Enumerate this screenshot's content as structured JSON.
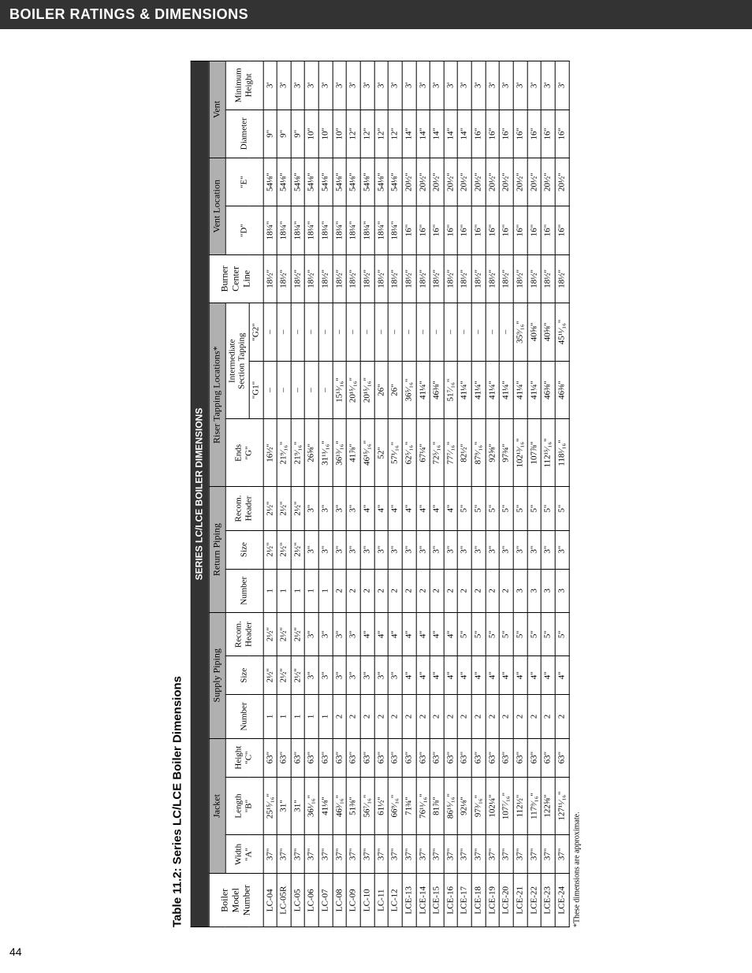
{
  "page_number": "44",
  "header": "BOILER RATINGS & DIMENSIONS",
  "table_title": "Table 11.2:  Series LC/LCE Boiler Dimensions",
  "main_title": "SERIES LC/LCE BOILER DIMENSIONS",
  "footnote": "*These dimensions are approximate.",
  "groups": {
    "jacket": "Jacket",
    "supply": "Supply Piping",
    "return": "Return Piping",
    "riser": "Riser Tapping Locations*",
    "vent_loc": "Vent Location",
    "vent": "Vent"
  },
  "subheads": {
    "boiler": "Boiler\nModel\nNumber",
    "width": "Width\n\"A\"",
    "length": "Length\n\"B\"",
    "height": "Height\n\"C\"",
    "number": "Number",
    "size": "Size",
    "recom": "Recom.\nHeader",
    "ends": "Ends\n\"G\"",
    "inter": "Intermediate\nSection Tapping",
    "g1": "\"G1\"",
    "g2": "\"G2\"",
    "burner": "Burner\nCenter\nLine",
    "d": "\"D\"",
    "e": "\"E\"",
    "diameter": "Diameter",
    "min": "Minimum\nHeight"
  },
  "rows": [
    {
      "m": "LC-04",
      "w": "37\"",
      "l": "25¹⁵⁄₁₆\"",
      "h": "63\"",
      "sn": "1",
      "ss": "2½\"",
      "sh": "2½\"",
      "rn": "1",
      "rs": "2½\"",
      "rh": "2½\"",
      "ends": "16½\"",
      "g1": "–",
      "g2": "–",
      "burn": "18½\"",
      "d": "18¼\"",
      "e": "54⅛\"",
      "diam": "9\"",
      "min": "3'"
    },
    {
      "m": "LC-05R",
      "w": "37\"",
      "l": "31\"",
      "h": "63\"",
      "sn": "1",
      "ss": "2½\"",
      "sh": "2½\"",
      "rn": "1",
      "rs": "2½\"",
      "rh": "2½\"",
      "ends": "21⁹⁄₁₆\"",
      "g1": "–",
      "g2": "–",
      "burn": "18½\"",
      "d": "18¼\"",
      "e": "54⅛\"",
      "diam": "9\"",
      "min": "3'"
    },
    {
      "m": "LC-05",
      "w": "37\"",
      "l": "31\"",
      "h": "63\"",
      "sn": "1",
      "ss": "2½\"",
      "sh": "2½\"",
      "rn": "1",
      "rs": "2½\"",
      "rh": "2½\"",
      "ends": "21⁹⁄₁₆\"",
      "g1": "–",
      "g2": "–",
      "burn": "18½\"",
      "d": "18¼\"",
      "e": "54⅛\"",
      "diam": "9\"",
      "min": "3'"
    },
    {
      "m": "LC-06",
      "w": "37\"",
      "l": "36¹⁄₁₆\"",
      "h": "63\"",
      "sn": "1",
      "ss": "3\"",
      "sh": "3\"",
      "rn": "1",
      "rs": "3\"",
      "rh": "3\"",
      "ends": "26⅝\"",
      "g1": "–",
      "g2": "–",
      "burn": "18½\"",
      "d": "18¼\"",
      "e": "54⅛\"",
      "diam": "10\"",
      "min": "3'"
    },
    {
      "m": "LC-07",
      "w": "37\"",
      "l": "41⅛\"",
      "h": "63\"",
      "sn": "1",
      "ss": "3\"",
      "sh": "3\"",
      "rn": "1",
      "rs": "3\"",
      "rh": "3\"",
      "ends": "31¹¹⁄₁₆\"",
      "g1": "–",
      "g2": "–",
      "burn": "18½\"",
      "d": "18¼\"",
      "e": "54⅛\"",
      "diam": "10\"",
      "min": "3'"
    },
    {
      "m": "LC-08",
      "w": "37\"",
      "l": "46³⁄₁₆\"",
      "h": "63\"",
      "sn": "2",
      "ss": "3\"",
      "sh": "3\"",
      "rn": "2",
      "rs": "3\"",
      "rh": "3\"",
      "ends": "36¹³⁄₁₆\"",
      "g1": "15¹³⁄₁₆\"",
      "g2": "–",
      "burn": "18½\"",
      "d": "18¼\"",
      "e": "54⅛\"",
      "diam": "10\"",
      "min": "3'"
    },
    {
      "m": "LC-09",
      "w": "37\"",
      "l": "51⅜\"",
      "h": "63\"",
      "sn": "2",
      "ss": "3\"",
      "sh": "3\"",
      "rn": "2",
      "rs": "3\"",
      "rh": "3\"",
      "ends": "41⅞\"",
      "g1": "20¹⁵⁄₁₆\"",
      "g2": "–",
      "burn": "18½\"",
      "d": "18¼\"",
      "e": "54⅛\"",
      "diam": "12\"",
      "min": "3'"
    },
    {
      "m": "LC-10",
      "w": "37\"",
      "l": "56⁷⁄₁₆\"",
      "h": "63\"",
      "sn": "2",
      "ss": "3\"",
      "sh": "4\"",
      "rn": "2",
      "rs": "3\"",
      "rh": "4\"",
      "ends": "46¹⁵⁄₁₆\"",
      "g1": "20¹⁵⁄₁₆\"",
      "g2": "–",
      "burn": "18½\"",
      "d": "18¼\"",
      "e": "54⅛\"",
      "diam": "12\"",
      "min": "3'"
    },
    {
      "m": "LC-11",
      "w": "37\"",
      "l": "61½\"",
      "h": "63\"",
      "sn": "2",
      "ss": "3\"",
      "sh": "4\"",
      "rn": "2",
      "rs": "3\"",
      "rh": "4\"",
      "ends": "52\"",
      "g1": "26\"",
      "g2": "–",
      "burn": "18½\"",
      "d": "18¼\"",
      "e": "54⅛\"",
      "diam": "12\"",
      "min": "3'"
    },
    {
      "m": "LC-12",
      "w": "37\"",
      "l": "66⁹⁄₁₆\"",
      "h": "63\"",
      "sn": "2",
      "ss": "3\"",
      "sh": "4\"",
      "rn": "2",
      "rs": "3\"",
      "rh": "4\"",
      "ends": "57¹⁄₁₆\"",
      "g1": "26\"",
      "g2": "–",
      "burn": "18½\"",
      "d": "18¼\"",
      "e": "54⅛\"",
      "diam": "12\"",
      "min": "3'"
    },
    {
      "m": "LCE-13",
      "w": "37\"",
      "l": "71¾\"",
      "h": "63\"",
      "sn": "2",
      "ss": "4\"",
      "sh": "4\"",
      "rn": "2",
      "rs": "3\"",
      "rh": "4\"",
      "ends": "62⁵⁄₁₆\"",
      "g1": "36⁵⁄₁₆\"",
      "g2": "–",
      "burn": "18½\"",
      "d": "16\"",
      "e": "20½\"",
      "diam": "14\"",
      "min": "3'"
    },
    {
      "m": "LCE-14",
      "w": "37\"",
      "l": "76¹¹⁄₁₆\"",
      "h": "63\"",
      "sn": "2",
      "ss": "4\"",
      "sh": "4\"",
      "rn": "2",
      "rs": "3\"",
      "rh": "4\"",
      "ends": "67¼\"",
      "g1": "41¼\"",
      "g2": "–",
      "burn": "18½\"",
      "d": "16\"",
      "e": "20½\"",
      "diam": "14\"",
      "min": "3'"
    },
    {
      "m": "LCE-15",
      "w": "37\"",
      "l": "81⅞\"",
      "h": "63\"",
      "sn": "2",
      "ss": "4\"",
      "sh": "4\"",
      "rn": "2",
      "rs": "3\"",
      "rh": "4\"",
      "ends": "72⁵⁄₁₆\"",
      "g1": "46⅜\"",
      "g2": "–",
      "burn": "18½\"",
      "d": "16\"",
      "e": "20½\"",
      "diam": "14\"",
      "min": "3'"
    },
    {
      "m": "LCE-16",
      "w": "37\"",
      "l": "86¹⁵⁄₁₆\"",
      "h": "63\"",
      "sn": "2",
      "ss": "4\"",
      "sh": "4\"",
      "rn": "2",
      "rs": "3\"",
      "rh": "4\"",
      "ends": "77⁷⁄₁₆\"",
      "g1": "51⁷⁄₁₆\"",
      "g2": "–",
      "burn": "18½\"",
      "d": "16\"",
      "e": "20½\"",
      "diam": "14\"",
      "min": "3'"
    },
    {
      "m": "LCE-17",
      "w": "37\"",
      "l": "92⅛\"",
      "h": "63\"",
      "sn": "2",
      "ss": "4\"",
      "sh": "5\"",
      "rn": "2",
      "rs": "3\"",
      "rh": "5\"",
      "ends": "82½\"",
      "g1": "41¼\"",
      "g2": "–",
      "burn": "18½\"",
      "d": "16\"",
      "e": "20½\"",
      "diam": "14\"",
      "min": "3'"
    },
    {
      "m": "LCE-18",
      "w": "37\"",
      "l": "97³⁄₁₆\"",
      "h": "63\"",
      "sn": "2",
      "ss": "4\"",
      "sh": "5\"",
      "rn": "2",
      "rs": "3\"",
      "rh": "5\"",
      "ends": "87⁹⁄₁₆\"",
      "g1": "41¼\"",
      "g2": "–",
      "burn": "18½\"",
      "d": "16\"",
      "e": "20½\"",
      "diam": "16\"",
      "min": "3'"
    },
    {
      "m": "LCE-19",
      "w": "37\"",
      "l": "102¼\"",
      "h": "63\"",
      "sn": "2",
      "ss": "4\"",
      "sh": "5\"",
      "rn": "2",
      "rs": "3\"",
      "rh": "5\"",
      "ends": "92⅝\"",
      "g1": "41¼\"",
      "g2": "–",
      "burn": "18½\"",
      "d": "16\"",
      "e": "20½\"",
      "diam": "16\"",
      "min": "3'"
    },
    {
      "m": "LCE-20",
      "w": "37\"",
      "l": "107⁷⁄₁₆\"",
      "h": "63\"",
      "sn": "2",
      "ss": "4\"",
      "sh": "5\"",
      "rn": "2",
      "rs": "3\"",
      "rh": "5\"",
      "ends": "97¾\"",
      "g1": "41¼\"",
      "g2": "–",
      "burn": "18½\"",
      "d": "16\"",
      "e": "20½\"",
      "diam": "16\"",
      "min": "3'"
    },
    {
      "m": "LCE-21",
      "w": "37\"",
      "l": "112½\"",
      "h": "63\"",
      "sn": "2",
      "ss": "4\"",
      "sh": "5\"",
      "rn": "3",
      "rs": "3\"",
      "rh": "5\"",
      "ends": "102¹³⁄₁₆\"",
      "g1": "41¼\"",
      "g2": "35⁹⁄₁₆\"",
      "burn": "18½\"",
      "d": "16\"",
      "e": "20½\"",
      "diam": "16\"",
      "min": "3'"
    },
    {
      "m": "LCE-22",
      "w": "37\"",
      "l": "117⁹⁄₁₆\"",
      "h": "63\"",
      "sn": "2",
      "ss": "4\"",
      "sh": "5\"",
      "rn": "3",
      "rs": "3\"",
      "rh": "5\"",
      "ends": "107⅞\"",
      "g1": "41¼\"",
      "g2": "40⅝\"",
      "burn": "18½\"",
      "d": "16\"",
      "e": "20½\"",
      "diam": "16\"",
      "min": "3'"
    },
    {
      "m": "LCE-23",
      "w": "37\"",
      "l": "122⅝\"",
      "h": "63\"",
      "sn": "2",
      "ss": "4\"",
      "sh": "5\"",
      "rn": "3",
      "rs": "3\"",
      "rh": "5\"",
      "ends": "112¹⁵⁄₁₆\"",
      "g1": "46⅜\"",
      "g2": "40⅝\"",
      "burn": "18½\"",
      "d": "16\"",
      "e": "20½\"",
      "diam": "16\"",
      "min": "3'"
    },
    {
      "m": "LCE-24",
      "w": "37\"",
      "l": "127¹¹⁄₁₆\"",
      "h": "63\"",
      "sn": "2",
      "ss": "4\"",
      "sh": "5\"",
      "rn": "3",
      "rs": "3\"",
      "rh": "5\"",
      "ends": "118¹⁄₁₆\"",
      "g1": "46⅜\"",
      "g2": "45¹¹⁄₁₆\"",
      "burn": "18½\"",
      "d": "16\"",
      "e": "20½\"",
      "diam": "16\"",
      "min": "3'"
    }
  ]
}
